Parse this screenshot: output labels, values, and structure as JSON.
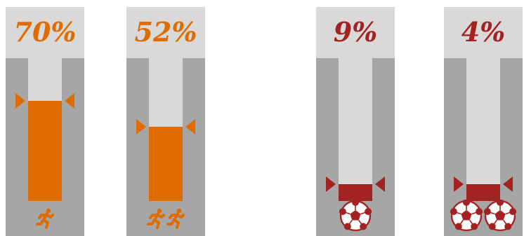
{
  "chart_data": {
    "type": "bar",
    "values": [
      70,
      52,
      9,
      4
    ],
    "labels": [
      "70%",
      "52%",
      "9%",
      "4%"
    ],
    "ylim": [
      0,
      100
    ],
    "icon_counts": [
      1,
      2,
      1,
      2
    ],
    "icon_types": [
      "runner-icon",
      "runner-icon",
      "soccer-ball-icon",
      "soccer-ball-icon"
    ],
    "colors": [
      "#e06c00",
      "#e06c00",
      "#a32222",
      "#a32222"
    ]
  }
}
